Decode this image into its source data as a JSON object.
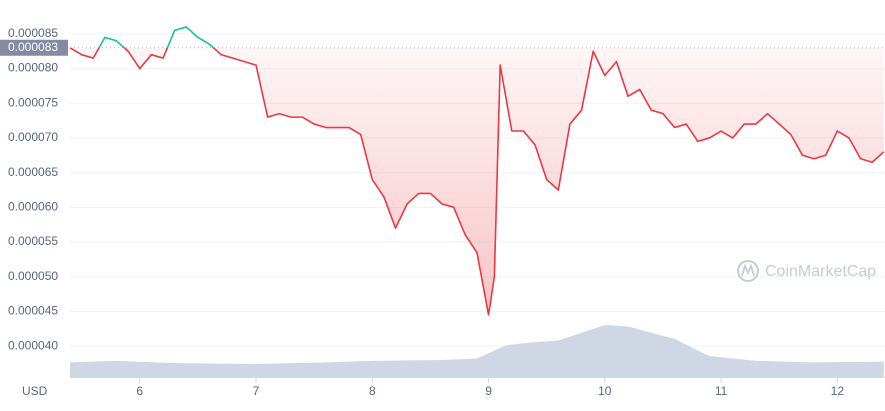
{
  "chart_data": {
    "type": "line",
    "y_label": "USD",
    "watermark": "CoinMarketCap",
    "baseline": 8.3e-05,
    "up_color": "#16c784",
    "down_color": "#ea3943",
    "grid": true,
    "xlim": [
      5.4,
      12.41
    ],
    "xticks": [
      6,
      7,
      8,
      9,
      10,
      11,
      12
    ],
    "ylim": [
      3.54e-05,
      8.7e-05
    ],
    "yticks": [
      {
        "value": 4e-05,
        "label": "0.000040"
      },
      4.5e-05,
      {
        "value": 5e-05,
        "label": "0.000050"
      },
      5.5e-05,
      {
        "value": 6e-05,
        "label": "0.000060"
      },
      6.5e-05,
      {
        "value": 7e-05,
        "label": "0.000070"
      },
      7.5e-05,
      {
        "value": 8e-05,
        "label": "0.000080"
      },
      8.5e-05
    ],
    "x": [
      5.4,
      5.5,
      5.6,
      5.7,
      5.8,
      5.9,
      6.0,
      6.1,
      6.2,
      6.3,
      6.4,
      6.5,
      6.6,
      6.7,
      6.8,
      6.9,
      7.0,
      7.1,
      7.2,
      7.3,
      7.4,
      7.5,
      7.6,
      7.7,
      7.8,
      7.9,
      8.0,
      8.1,
      8.2,
      8.3,
      8.4,
      8.5,
      8.6,
      8.7,
      8.8,
      8.9,
      9.0,
      9.05,
      9.1,
      9.2,
      9.3,
      9.4,
      9.5,
      9.6,
      9.7,
      9.8,
      9.9,
      10.0,
      10.1,
      10.2,
      10.3,
      10.4,
      10.5,
      10.6,
      10.7,
      10.8,
      10.9,
      11.0,
      11.1,
      11.2,
      11.3,
      11.4,
      11.5,
      11.6,
      11.7,
      11.8,
      11.9,
      12.0,
      12.1,
      12.2,
      12.3,
      12.4
    ],
    "series": [
      {
        "name": "Price",
        "values": [
          8.3e-05,
          8.2e-05,
          8.15e-05,
          8.45e-05,
          8.4e-05,
          8.25e-05,
          8e-05,
          8.2e-05,
          8.15e-05,
          8.55e-05,
          8.6e-05,
          8.45e-05,
          8.35e-05,
          8.2e-05,
          8.15e-05,
          8.1e-05,
          8.05e-05,
          7.3e-05,
          7.35e-05,
          7.3e-05,
          7.3e-05,
          7.2e-05,
          7.15e-05,
          7.15e-05,
          7.15e-05,
          7.05e-05,
          6.4e-05,
          6.15e-05,
          5.7e-05,
          6.05e-05,
          6.2e-05,
          6.2e-05,
          6.05e-05,
          6e-05,
          5.6e-05,
          5.35e-05,
          4.45e-05,
          5e-05,
          8.05e-05,
          7.1e-05,
          7.1e-05,
          6.9e-05,
          6.4e-05,
          6.25e-05,
          7.2e-05,
          7.4e-05,
          8.25e-05,
          7.9e-05,
          8.1e-05,
          7.6e-05,
          7.7e-05,
          7.4e-05,
          7.35e-05,
          7.15e-05,
          7.2e-05,
          6.95e-05,
          7e-05,
          7.1e-05,
          7e-05,
          7.2e-05,
          7.2e-05,
          7.35e-05,
          7.2e-05,
          7.05e-05,
          6.75e-05,
          6.7e-05,
          6.75e-05,
          7.1e-05,
          7e-05,
          6.7e-05,
          6.65e-05,
          6.8e-05
        ]
      },
      {
        "name": "Volume",
        "axis": "y2",
        "color": "#cfd6e4",
        "x": [
          5.4,
          5.8,
          6.3,
          7.0,
          7.6,
          8.0,
          8.6,
          8.9,
          9.15,
          9.4,
          9.6,
          9.8,
          10.0,
          10.2,
          10.4,
          10.6,
          10.9,
          11.3,
          11.8,
          12.4
        ],
        "values": [
          20,
          22,
          19,
          18,
          20,
          22,
          23,
          25,
          42,
          46,
          48,
          58,
          68,
          66,
          58,
          50,
          28,
          22,
          20,
          21
        ]
      }
    ],
    "y2lim": [
      0,
      100
    ]
  }
}
